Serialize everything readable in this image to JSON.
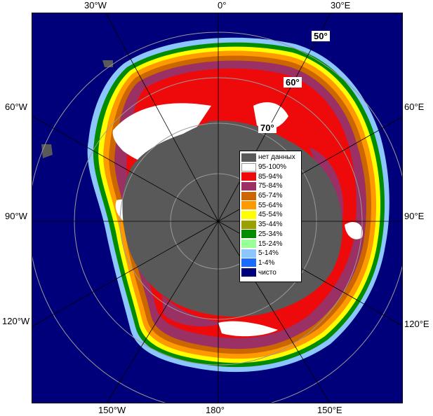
{
  "map": {
    "graticule": {
      "top_labels": [
        "30°W",
        "0°",
        "30°E"
      ],
      "left_labels": [
        "60°W",
        "90°W",
        "120°W"
      ],
      "right_labels": [
        "60°E",
        "90°E",
        "120°E"
      ],
      "bottom_labels": [
        "150°W",
        "180°",
        "150°E"
      ],
      "lat_labels": [
        "50°",
        "60°",
        "70°"
      ]
    },
    "colors": {
      "ocean": "#00007a",
      "land": "#595959",
      "gridline": "#9a9a9a"
    }
  },
  "legend": {
    "items": [
      {
        "label": "нет данных",
        "color": "#595959"
      },
      {
        "label": "95-100%",
        "color": "#ffffff"
      },
      {
        "label": "85-94%",
        "color": "#ee0a0a"
      },
      {
        "label": "75-84%",
        "color": "#9a3063"
      },
      {
        "label": "65-74%",
        "color": "#cc6600"
      },
      {
        "label": "55-64%",
        "color": "#ff9900"
      },
      {
        "label": "45-54%",
        "color": "#ffff00"
      },
      {
        "label": "35-44%",
        "color": "#99a000"
      },
      {
        "label": "25-34%",
        "color": "#008c00"
      },
      {
        "label": "15-24%",
        "color": "#99ff99"
      },
      {
        "label": "5-14%",
        "color": "#8cc6ff"
      },
      {
        "label": "1-4%",
        "color": "#1a6bff"
      },
      {
        "label": "чисто",
        "color": "#00007a"
      }
    ]
  }
}
